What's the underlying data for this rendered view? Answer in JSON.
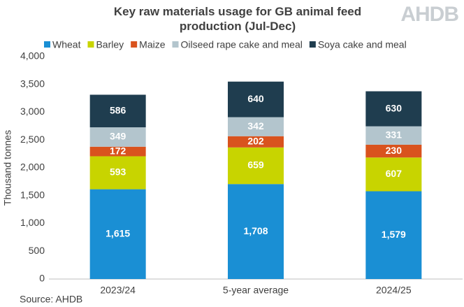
{
  "chart_data": {
    "type": "stacked_bar",
    "title": "Key raw materials usage for GB animal feed production (Jul-Dec)",
    "logo": "AHDB",
    "source": "Source: AHDB",
    "y_label": "Thousand tonnes",
    "categories": [
      "2023/24",
      "5-year average",
      "2024/25"
    ],
    "series": [
      {
        "name": "Wheat",
        "color": "#1a8fd4",
        "values": [
          1615,
          1708,
          1579
        ],
        "value_labels": [
          "1,615",
          "1,708",
          "1,579"
        ]
      },
      {
        "name": "Barley",
        "color": "#c8d400",
        "values": [
          593,
          659,
          607
        ]
      },
      {
        "name": "Maize",
        "color": "#d9531e",
        "values": [
          172,
          202,
          230
        ]
      },
      {
        "name": "Oilseed rape cake and meal",
        "color": "#b3c5cd",
        "values": [
          349,
          342,
          331
        ]
      },
      {
        "name": "Soya cake and meal",
        "color": "#1f3d4f",
        "values": [
          586,
          640,
          630
        ]
      }
    ],
    "ylim": [
      0,
      4000
    ],
    "yticks": [
      0,
      500,
      {
        "value": 1000,
        "label": "1,000"
      },
      {
        "value": 1500,
        "label": "1,500"
      },
      {
        "value": 2000,
        "label": "2,000"
      },
      {
        "value": 2500,
        "label": "2,500"
      },
      {
        "value": 3000,
        "label": "3,000"
      },
      {
        "value": 3500,
        "label": "3,500"
      },
      {
        "value": 4000,
        "label": "4,000"
      }
    ],
    "grid": false,
    "legend": "top"
  }
}
